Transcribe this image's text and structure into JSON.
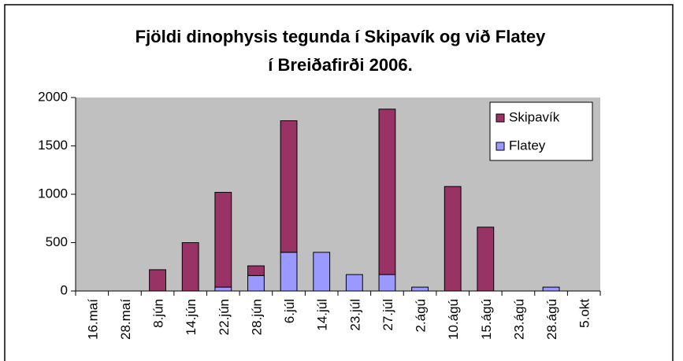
{
  "chart_data": {
    "type": "stacked_bar",
    "title": [
      "Fjöldi dinophysis tegunda í Skipavík og við Flatey",
      "í Breiðafirði 2006."
    ],
    "categories": [
      "16.maí",
      "28.maí",
      "8.jún",
      "14.jún",
      "22.jún",
      "28.jún",
      "6.júl",
      "14.júl",
      "23.júl",
      "27.júl",
      "2.ágú",
      "10.ágú",
      "15.ágú",
      "23.ágú",
      "28.ágú",
      "5.okt"
    ],
    "series": [
      {
        "name": "Flatey",
        "color": "#9999ff",
        "values": [
          0,
          0,
          0,
          0,
          40,
          160,
          400,
          400,
          170,
          170,
          40,
          0,
          0,
          0,
          40,
          0
        ]
      },
      {
        "name": "Skipavík",
        "color": "#993366",
        "values": [
          0,
          0,
          220,
          500,
          980,
          100,
          1360,
          0,
          0,
          1710,
          0,
          1080,
          660,
          0,
          0,
          0
        ]
      }
    ],
    "ylim": [
      0,
      2000
    ],
    "yticks": [
      0,
      500,
      1000,
      1500,
      2000
    ],
    "legend": "top-right",
    "plot_background": "#c0c0c0"
  }
}
